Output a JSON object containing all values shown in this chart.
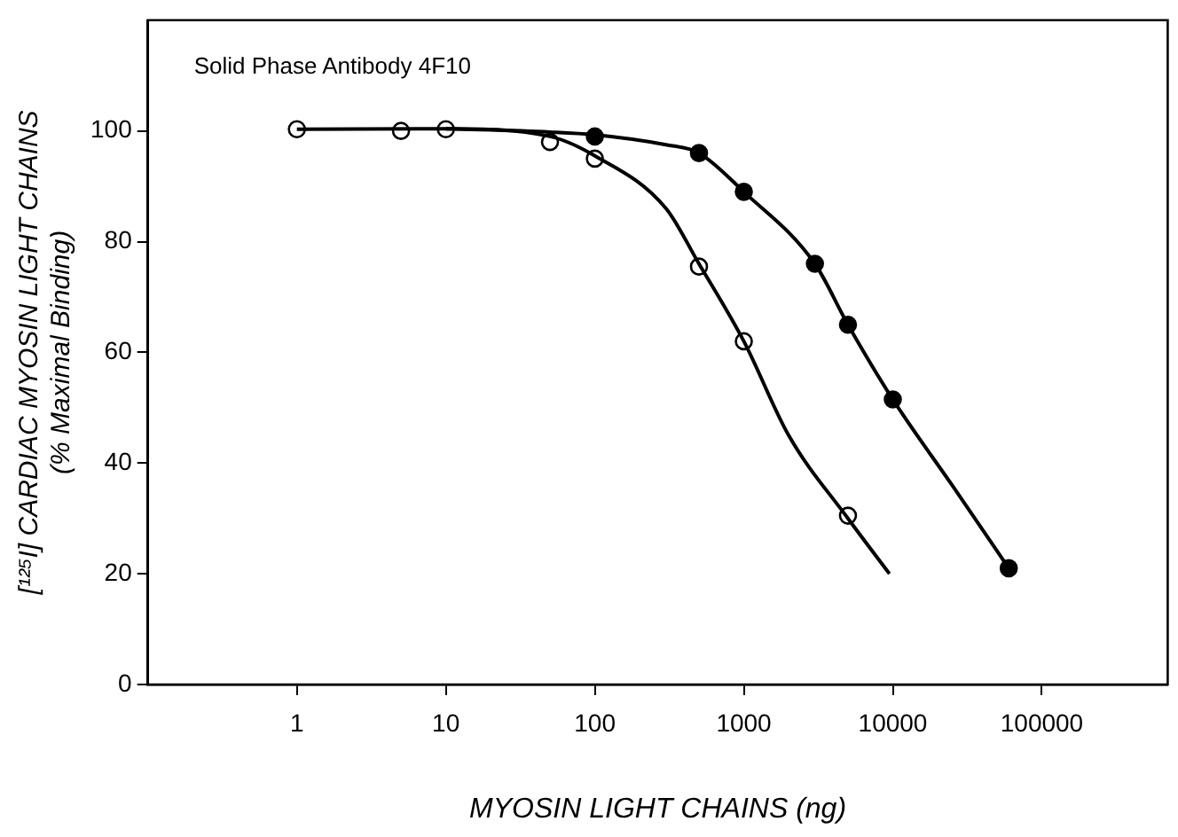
{
  "chart_data": {
    "type": "line",
    "xlabel": "MYOSIN LIGHT CHAINS (ng)",
    "ylabel": "[¹²⁵I] CARDIAC MYOSIN LIGHT CHAINS\n(% Maximal Binding)",
    "annotations": [
      "Solid Phase Antibody 4F10"
    ],
    "log": "x",
    "grid": false,
    "legend": false,
    "line_style": "solid",
    "xlim": [
      0.1,
      700000
    ],
    "xticks": [
      1,
      10,
      100,
      1000,
      10000,
      100000
    ],
    "ylim": [
      0,
      120
    ],
    "yticks": [
      0,
      20,
      40,
      60,
      80,
      100
    ],
    "series": [
      {
        "marker": "none",
        "color": "#000000",
        "x": [
          1,
          10,
          50,
          100,
          300,
          500,
          1000,
          2000,
          5000,
          9500
        ],
        "values": [
          100.3,
          100.4,
          99,
          95.5,
          86,
          76,
          62,
          45,
          30,
          20
        ]
      },
      {
        "marker": "none",
        "color": "#000000",
        "x": [
          10,
          50,
          100,
          300,
          500,
          1000,
          3000,
          5000,
          10000,
          25000,
          60000
        ],
        "values": [
          100.4,
          99.8,
          99.3,
          97.5,
          96,
          89,
          76,
          65,
          51.5,
          36,
          21
        ]
      },
      {
        "type": "scatter",
        "marker": "circle",
        "color": "#ffffff",
        "x": [
          1,
          5,
          10,
          50,
          100,
          500,
          1000,
          5000
        ],
        "values": [
          100.3,
          100,
          100.3,
          98,
          95,
          75.5,
          62,
          30.5
        ]
      },
      {
        "type": "scatter",
        "marker": "circle",
        "color": "#000000",
        "x": [
          100,
          500,
          1000,
          3000,
          5000,
          10000,
          60000
        ],
        "values": [
          99,
          96,
          89,
          76,
          65,
          51.5,
          21
        ]
      }
    ]
  }
}
